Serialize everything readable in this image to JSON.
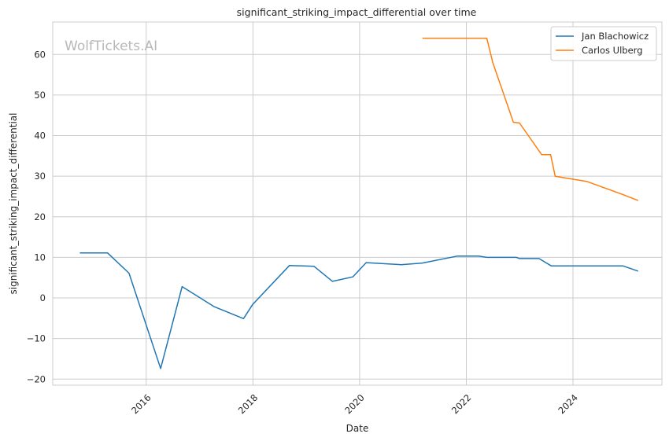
{
  "chart_data": {
    "type": "line",
    "title": "significant_striking_impact_differential over time",
    "xlabel": "Date",
    "ylabel": "significant_striking_impact_differential",
    "watermark": "WolfTickets.AI",
    "xlim": [
      "2014-04-01",
      "2025-09-01"
    ],
    "ylim": [
      -21.5,
      68
    ],
    "x_ticks": [
      "2016-01-01",
      "2018-01-01",
      "2020-01-01",
      "2022-01-01",
      "2024-01-01"
    ],
    "x_tick_labels": [
      "2016",
      "2018",
      "2020",
      "2022",
      "2024"
    ],
    "y_ticks": [
      -20,
      -10,
      0,
      10,
      20,
      30,
      40,
      50,
      60
    ],
    "y_tick_labels": [
      "−20",
      "−10",
      "0",
      "10",
      "20",
      "30",
      "40",
      "50",
      "60"
    ],
    "grid": true,
    "legend_position": "top-right",
    "series": [
      {
        "name": "Jan Blachowicz",
        "color": "#1f77b4",
        "x": [
          "2014-10-04",
          "2015-04-11",
          "2015-09-05",
          "2016-04-09",
          "2016-09-03",
          "2017-04-08",
          "2017-10-28",
          "2017-12-30",
          "2018-09-08",
          "2019-02-23",
          "2019-06-29",
          "2019-11-16",
          "2020-02-15",
          "2020-10-10",
          "2021-03-06",
          "2021-10-30",
          "2022-03-26",
          "2022-05-21",
          "2022-12-10",
          "2022-12-31",
          "2023-05-13",
          "2023-08-05",
          "2024-04-13",
          "2024-12-07",
          "2025-03-22"
        ],
        "y": [
          11.1,
          11.1,
          6.1,
          -17.4,
          2.8,
          -2.1,
          -5.1,
          -1.6,
          8.0,
          7.8,
          4.1,
          5.2,
          8.7,
          8.2,
          8.6,
          10.3,
          10.3,
          10.0,
          10.0,
          9.7,
          9.7,
          7.9,
          7.9,
          7.9,
          6.6
        ]
      },
      {
        "name": "Carlos Ulberg",
        "color": "#ff7f0e",
        "x": [
          "2021-03-06",
          "2021-11-20",
          "2022-05-21",
          "2022-07-01",
          "2022-11-19",
          "2022-12-31",
          "2023-06-01",
          "2023-08-01",
          "2023-09-01",
          "2024-04-06",
          "2024-12-07",
          "2025-03-22"
        ],
        "y": [
          64.0,
          64.0,
          64.0,
          58.0,
          43.3,
          43.1,
          35.3,
          35.3,
          30.0,
          28.7,
          25.5,
          24.0
        ]
      }
    ]
  }
}
